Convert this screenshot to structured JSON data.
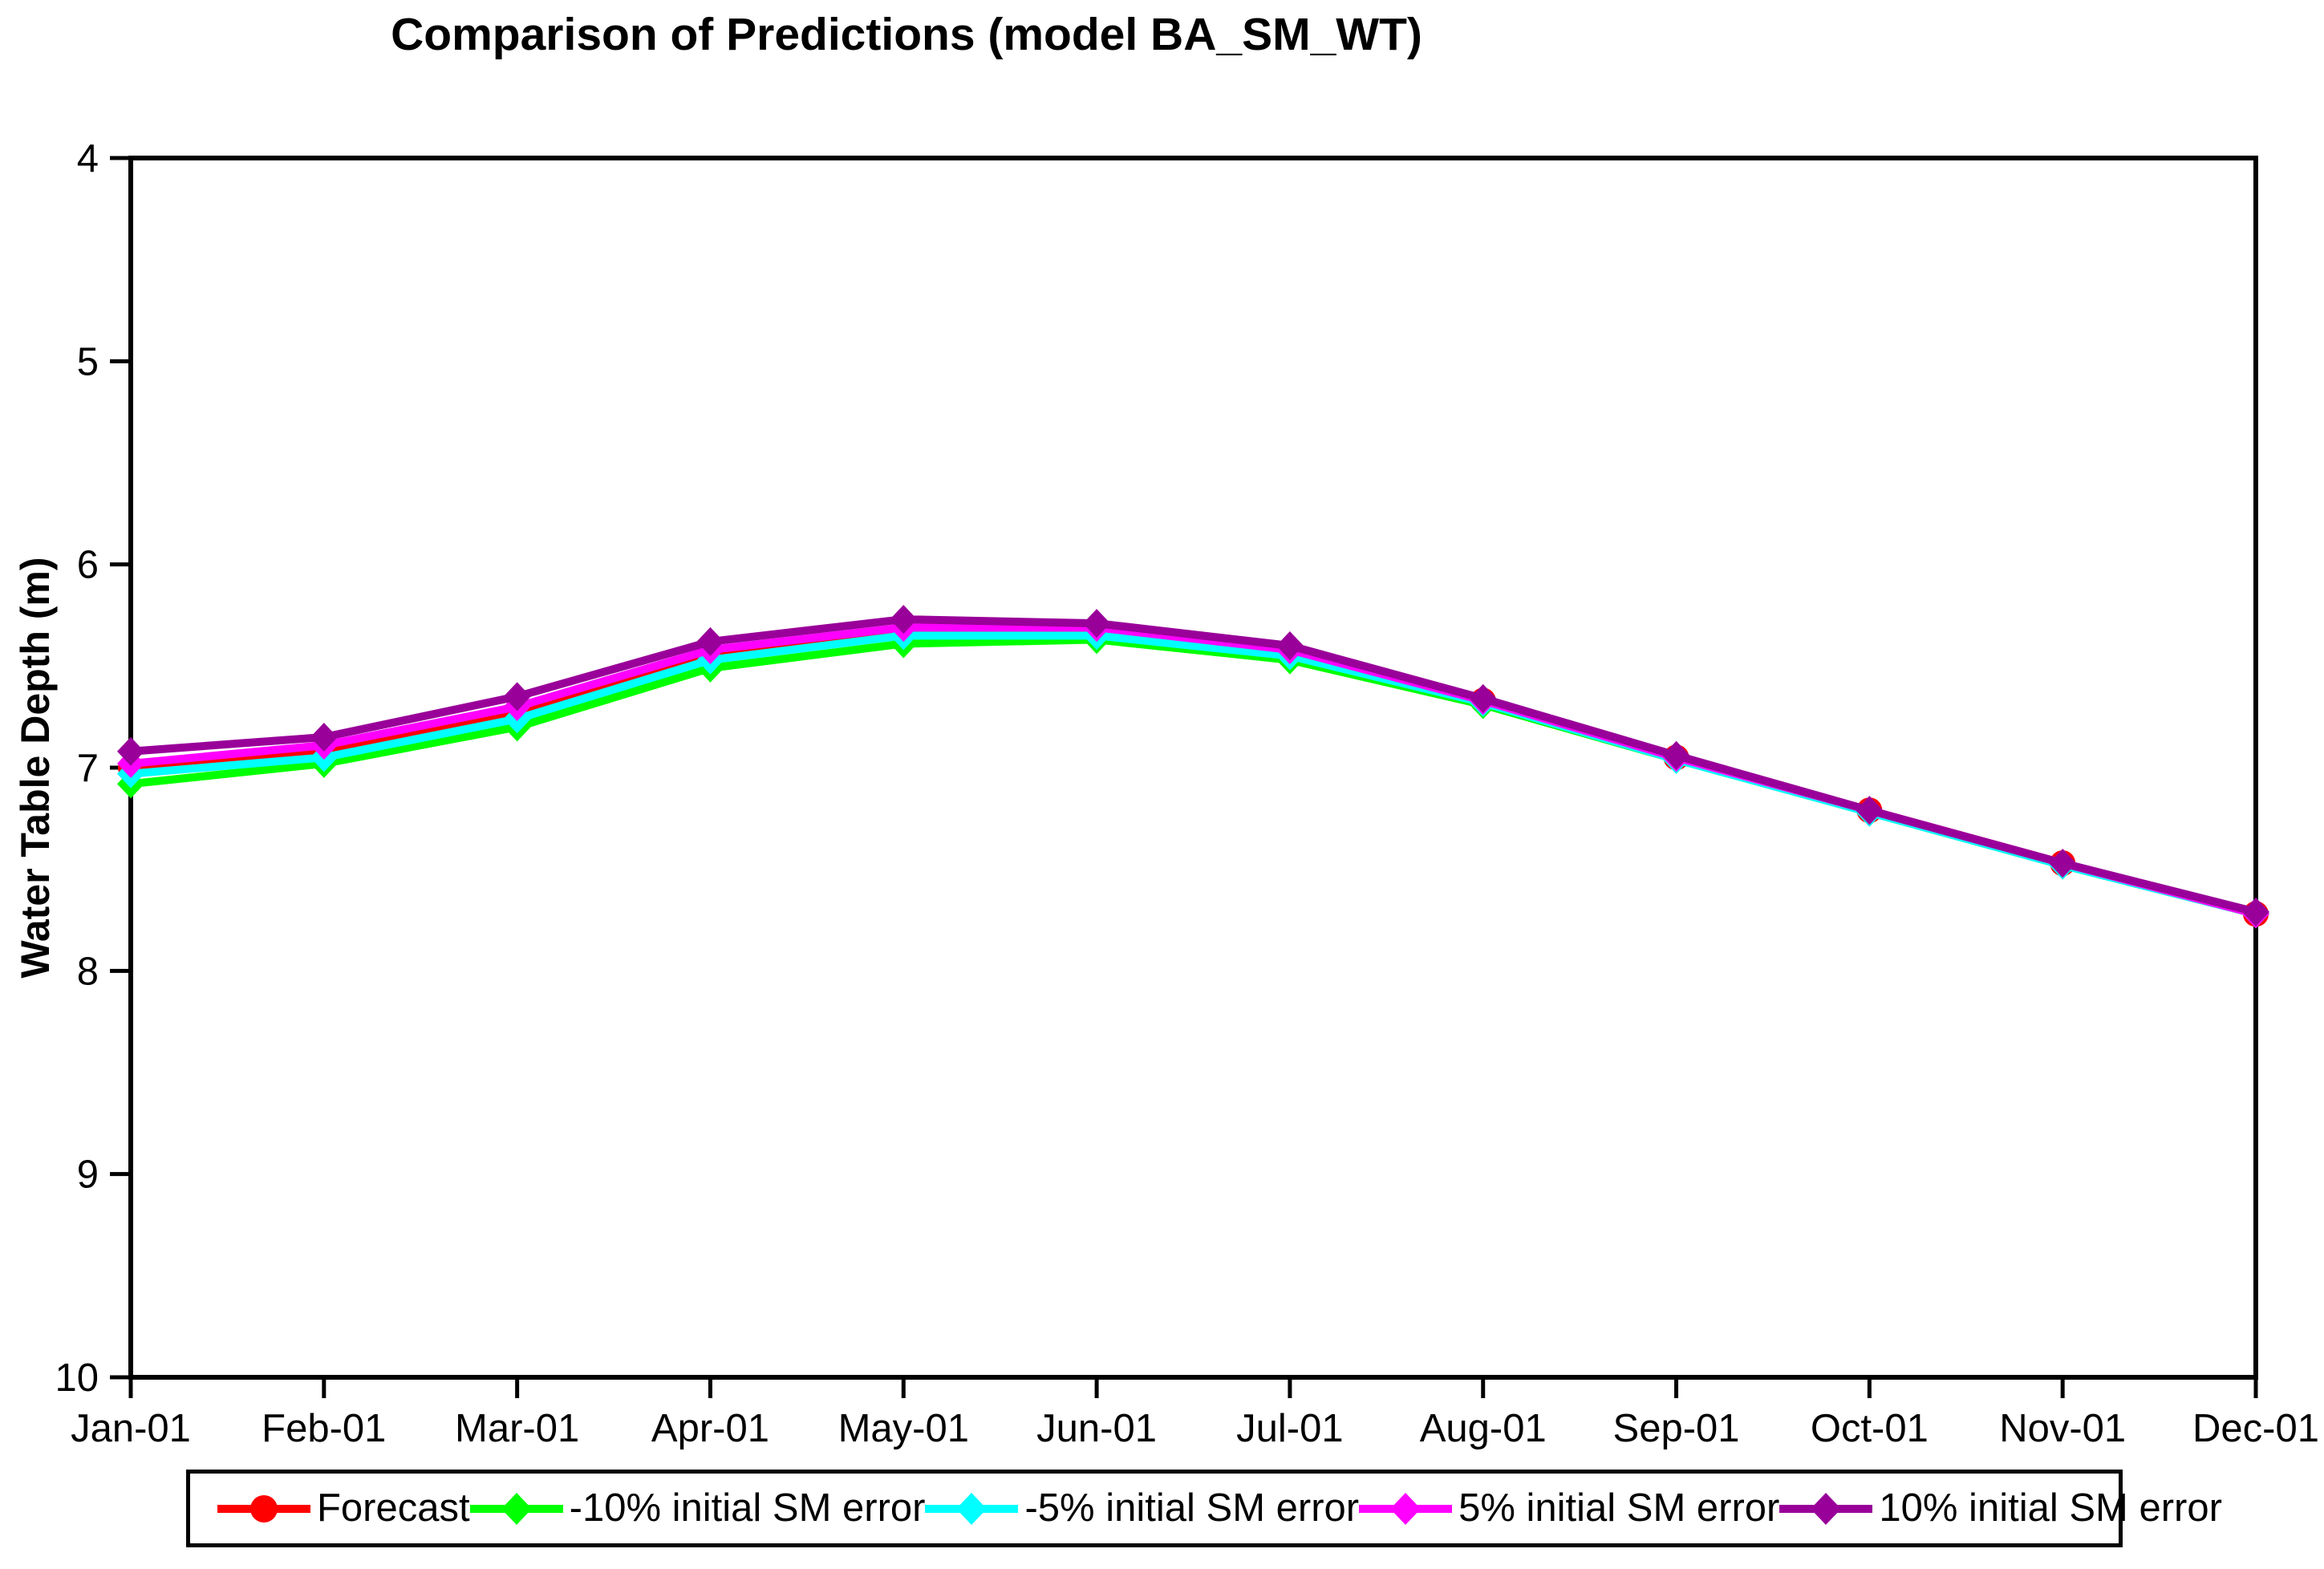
{
  "chart_data": {
    "type": "line",
    "title": "Comparison of Predictions (model BA_SM_WT)",
    "xlabel": "",
    "ylabel": "Water Table Depth (m)",
    "categories": [
      "Jan-01",
      "Feb-01",
      "Mar-01",
      "Apr-01",
      "May-01",
      "Jun-01",
      "Jul-01",
      "Aug-01",
      "Sep-01",
      "Oct-01",
      "Nov-01",
      "Dec-01"
    ],
    "y_axis": {
      "min": 4,
      "max": 10,
      "ticks": [
        4,
        5,
        6,
        7,
        8,
        9,
        10
      ],
      "inverted": true
    },
    "x_axis": {
      "tick_count": 12
    },
    "grid": false,
    "legend_position": "bottom",
    "plot_background": "#FFFFFF",
    "axis_color": "#000000",
    "series": [
      {
        "name": "Forecast",
        "color": "#FF0000",
        "marker": "circle",
        "values": [
          7.0,
          6.92,
          6.73,
          6.44,
          6.33,
          6.33,
          6.43,
          6.67,
          6.95,
          7.21,
          7.47,
          7.72
        ]
      },
      {
        "name": "-10% initial SM error",
        "color": "#00FF00",
        "marker": "diamond",
        "values": [
          7.08,
          6.98,
          6.8,
          6.51,
          6.39,
          6.37,
          6.47,
          6.69,
          6.96,
          7.22,
          7.48,
          7.72
        ]
      },
      {
        "name": "-5% initial SM error",
        "color": "#00FFFF",
        "marker": "diamond",
        "values": [
          7.03,
          6.95,
          6.76,
          6.47,
          6.35,
          6.35,
          6.45,
          6.68,
          6.96,
          7.22,
          7.48,
          7.72
        ]
      },
      {
        "name": "5% initial SM error",
        "color": "#FF00FF",
        "marker": "diamond",
        "values": [
          6.98,
          6.89,
          6.7,
          6.42,
          6.31,
          6.31,
          6.42,
          6.67,
          6.95,
          7.21,
          7.47,
          7.72
        ]
      },
      {
        "name": "10% initial SM error",
        "color": "#990099",
        "marker": "diamond",
        "values": [
          6.92,
          6.85,
          6.65,
          6.38,
          6.27,
          6.29,
          6.4,
          6.66,
          6.94,
          7.21,
          7.47,
          7.71
        ]
      }
    ]
  }
}
